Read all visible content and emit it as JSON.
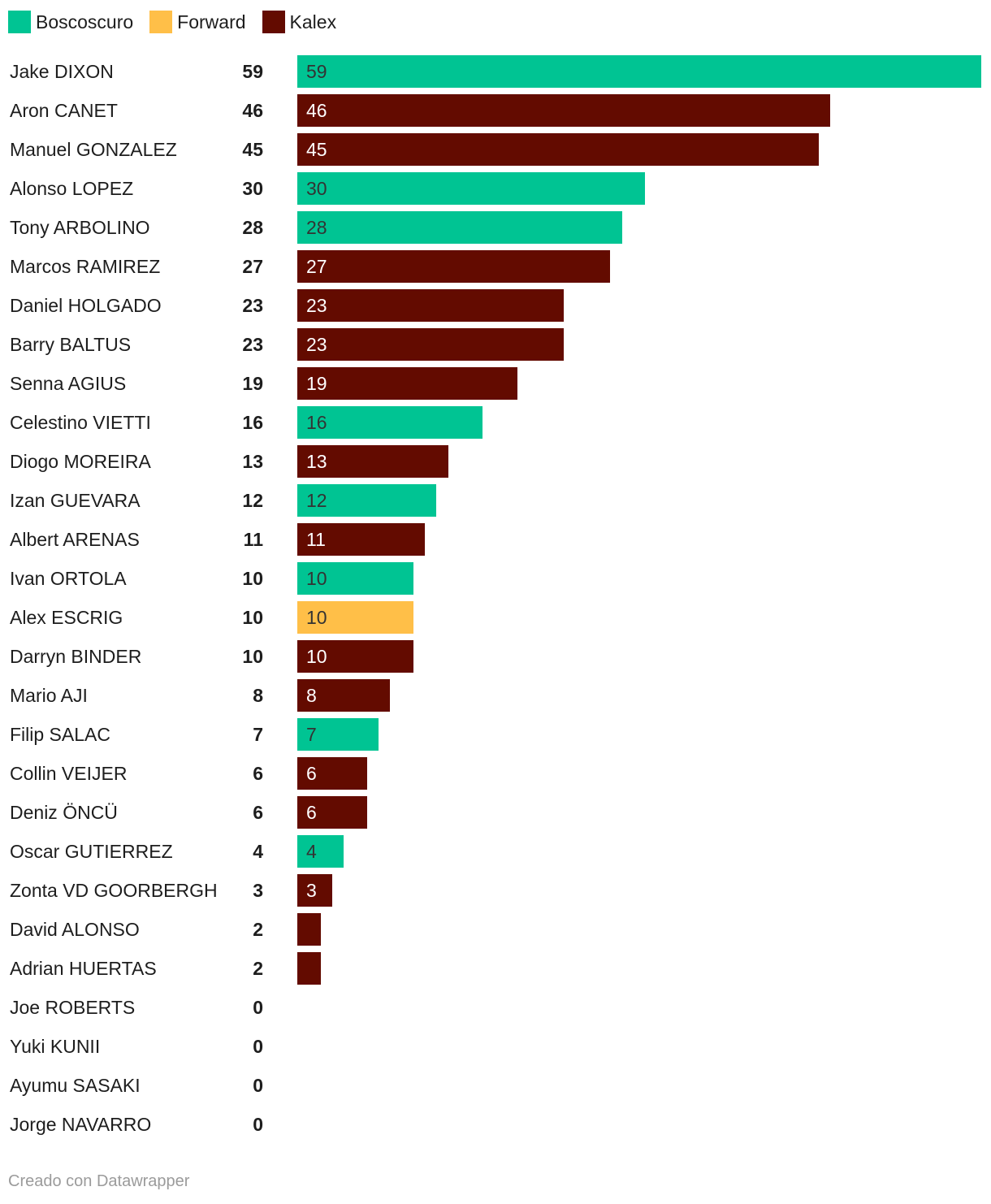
{
  "chart_data": {
    "type": "bar",
    "orientation": "horizontal",
    "legend": {
      "placement": "top-left",
      "items": [
        {
          "label": "Boscoscuro",
          "color": "#00c493"
        },
        {
          "label": "Forward",
          "color": "#ffbf48"
        },
        {
          "label": "Kalex",
          "color": "#630b00"
        }
      ]
    },
    "xlim": [
      0,
      59
    ],
    "grid": false,
    "rows": [
      {
        "name": "Jake DIXON",
        "value": 59,
        "team": "Boscoscuro",
        "label": "59"
      },
      {
        "name": "Aron CANET",
        "value": 46,
        "team": "Kalex",
        "label": "46"
      },
      {
        "name": "Manuel GONZALEZ",
        "value": 45,
        "team": "Kalex",
        "label": "45"
      },
      {
        "name": "Alonso LOPEZ",
        "value": 30,
        "team": "Boscoscuro",
        "label": "30"
      },
      {
        "name": "Tony ARBOLINO",
        "value": 28,
        "team": "Boscoscuro",
        "label": "28"
      },
      {
        "name": "Marcos RAMIREZ",
        "value": 27,
        "team": "Kalex",
        "label": "27"
      },
      {
        "name": "Daniel HOLGADO",
        "value": 23,
        "team": "Kalex",
        "label": "23"
      },
      {
        "name": "Barry BALTUS",
        "value": 23,
        "team": "Kalex",
        "label": "23"
      },
      {
        "name": "Senna AGIUS",
        "value": 19,
        "team": "Kalex",
        "label": "19"
      },
      {
        "name": "Celestino VIETTI",
        "value": 16,
        "team": "Boscoscuro",
        "label": "16"
      },
      {
        "name": "Diogo MOREIRA",
        "value": 13,
        "team": "Kalex",
        "label": "13"
      },
      {
        "name": "Izan GUEVARA",
        "value": 12,
        "team": "Boscoscuro",
        "label": "12"
      },
      {
        "name": "Albert ARENAS",
        "value": 11,
        "team": "Kalex",
        "label": "11"
      },
      {
        "name": "Ivan ORTOLA",
        "value": 10,
        "team": "Boscoscuro",
        "label": "10"
      },
      {
        "name": "Alex ESCRIG",
        "value": 10,
        "team": "Forward",
        "label": "10"
      },
      {
        "name": "Darryn BINDER",
        "value": 10,
        "team": "Kalex",
        "label": "10"
      },
      {
        "name": "Mario AJI",
        "value": 8,
        "team": "Kalex",
        "label": "8"
      },
      {
        "name": "Filip SALAC",
        "value": 7,
        "team": "Boscoscuro",
        "label": "7"
      },
      {
        "name": "Collin VEIJER",
        "value": 6,
        "team": "Kalex",
        "label": "6"
      },
      {
        "name": "Deniz ÖNCÜ",
        "value": 6,
        "team": "Kalex",
        "label": "6"
      },
      {
        "name": "Oscar GUTIERREZ",
        "value": 4,
        "team": "Boscoscuro",
        "label": "4"
      },
      {
        "name": "Zonta VD GOORBERGH",
        "value": 3,
        "team": "Kalex",
        "label": "3"
      },
      {
        "name": "David ALONSO",
        "value": 2,
        "team": "Kalex",
        "label": ""
      },
      {
        "name": "Adrian HUERTAS",
        "value": 2,
        "team": "Kalex",
        "label": ""
      },
      {
        "name": "Joe ROBERTS",
        "value": 0,
        "team": "",
        "label": ""
      },
      {
        "name": "Yuki KUNII",
        "value": 0,
        "team": "",
        "label": ""
      },
      {
        "name": "Ayumu SASAKI",
        "value": 0,
        "team": "",
        "label": ""
      },
      {
        "name": "Jorge NAVARRO",
        "value": 0,
        "team": "",
        "label": ""
      }
    ]
  },
  "colors": {
    "bar_label_on_dark": "#ffffff",
    "bar_label_on_light": "#333333"
  },
  "footer": {
    "credit": "Creado con Datawrapper"
  }
}
